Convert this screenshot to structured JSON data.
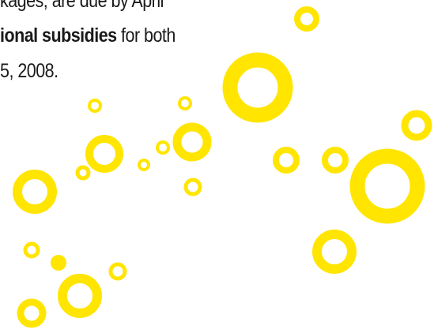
{
  "text": {
    "line1": "kages, are due by April",
    "line2_bold": "ional subsidies",
    "line2_rest": " for both",
    "line3": "5, 2008."
  },
  "colors": {
    "circle_yellow": "#FFE500",
    "text": "#1a1a1a",
    "background": "#ffffff"
  }
}
